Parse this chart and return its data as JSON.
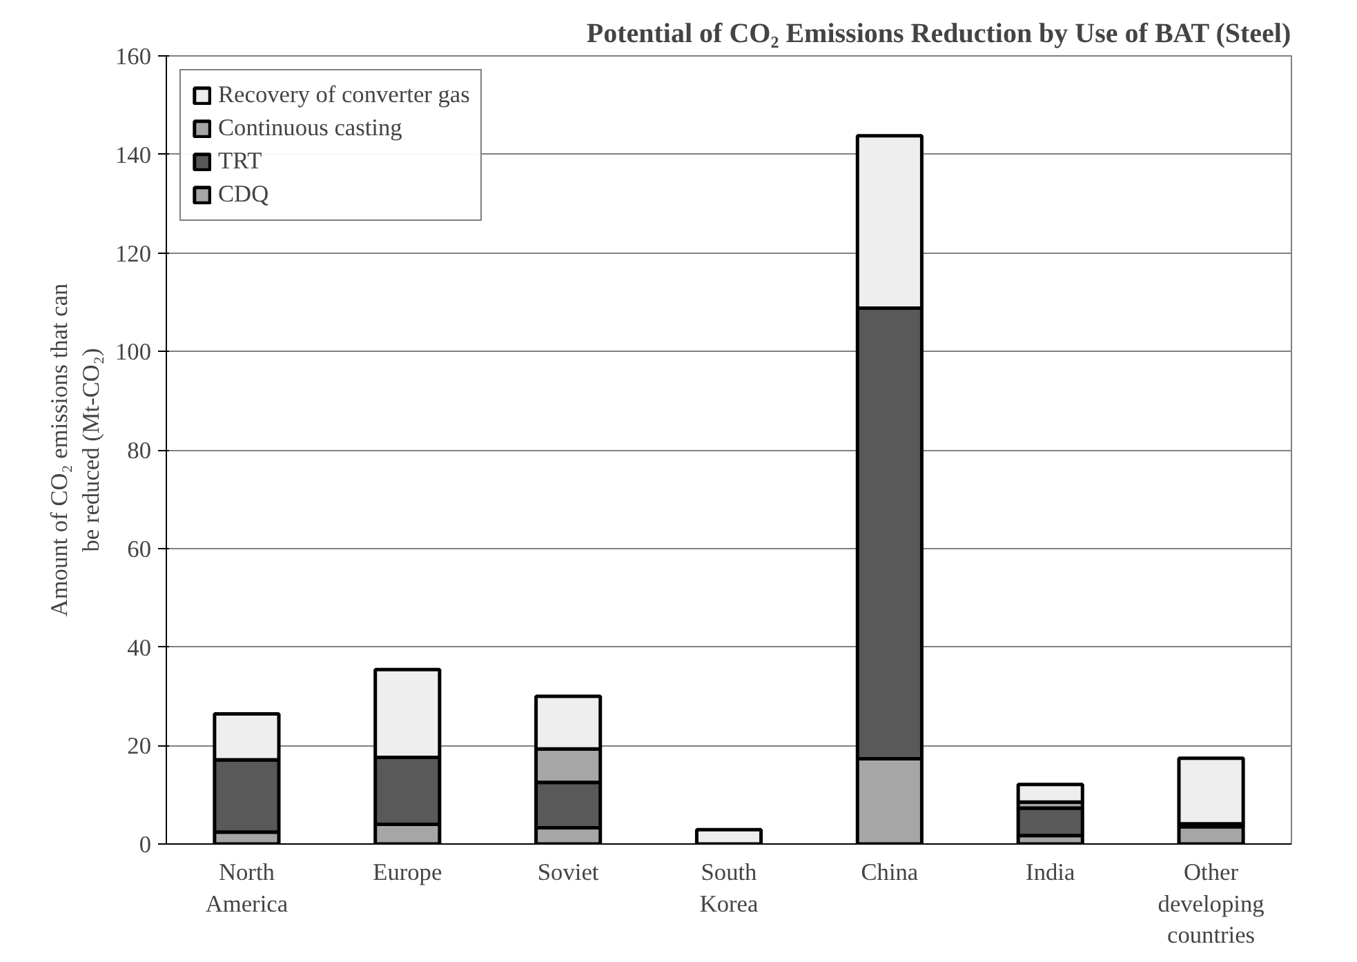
{
  "chart_data": {
    "type": "bar",
    "stacked": true,
    "title": "Potential of CO₂ Emissions Reduction by Use of BAT (Steel)",
    "ylabel": "Amount of CO₂ emissions that can\nbe reduced (Mt-CO₂)",
    "categories": [
      "North\nAmerica",
      "Europe",
      "Soviet",
      "South\nKorea",
      "China",
      "India",
      "Other\ndeveloping\ncountries"
    ],
    "series": [
      {
        "name": "CDQ",
        "color": "#a6a6a6",
        "values": [
          2.4,
          4.0,
          3.3,
          0,
          17.3,
          1.7,
          3.5
        ]
      },
      {
        "name": "TRT",
        "color": "#595959",
        "values": [
          14.7,
          13.6,
          9.2,
          null,
          91.5,
          5.6,
          0.6
        ]
      },
      {
        "name": "Continuous casting",
        "color": "#a6a6a6",
        "values": [
          null,
          null,
          6.8,
          0,
          null,
          1.2,
          null
        ]
      },
      {
        "name": "Recovery of converter gas",
        "color": "#eeeeee",
        "values": [
          9.3,
          17.8,
          10.7,
          2.9,
          35.0,
          3.6,
          13.3
        ]
      }
    ],
    "ylim": [
      0,
      160
    ],
    "yticks": [
      0,
      20,
      40,
      60,
      80,
      100,
      120,
      140,
      160
    ],
    "grid": "y",
    "legend": "top left"
  }
}
